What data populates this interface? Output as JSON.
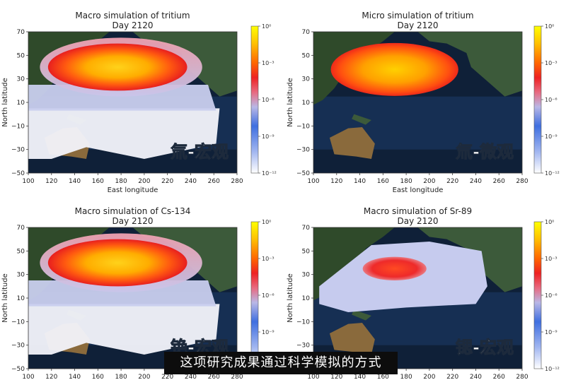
{
  "colorbar_ticks": [
    "10⁰",
    "10⁻³",
    "10⁻⁶",
    "10⁻⁹",
    "10⁻¹²"
  ],
  "colormap": [
    "#ffff00",
    "#ffbf00",
    "#ff6600",
    "#ee2222",
    "#e86a80",
    "#b9b7e6",
    "#3f6fe0",
    "#9fb4f0",
    "#ffffff"
  ],
  "land_color": "#2f4a2a",
  "ocean_color": "#0f2038",
  "chart_data": [
    {
      "type": "heatmap",
      "title": "Macro simulation of tritium",
      "subtitle": "Day 2120",
      "xlabel": "East longitude",
      "ylabel": "North latitude",
      "xticks": [
        "100",
        "120",
        "140",
        "160",
        "180",
        "200",
        "220",
        "240",
        "260",
        "280"
      ],
      "yticks": [
        "70",
        "50",
        "30",
        "10",
        "−10",
        "−30",
        "−50"
      ],
      "xlim": [
        100,
        280
      ],
      "ylim": [
        -50,
        70
      ],
      "colorbar_scale": "log",
      "colorbar_range": [
        1e-12,
        1
      ],
      "overlay_label": "氚-宏观",
      "plume": {
        "core_lon": [
          115,
          235
        ],
        "core_lat": [
          20,
          60
        ],
        "extent_lon": [
          100,
          265
        ],
        "extent_lat": [
          -38,
          65
        ]
      }
    },
    {
      "type": "heatmap",
      "title": "Micro simulation of tritium",
      "subtitle": "Day 2120",
      "xlabel": "East longitude",
      "ylabel": "North latitude",
      "xticks": [
        "100",
        "120",
        "140",
        "160",
        "180",
        "200",
        "220",
        "240",
        "260",
        "280"
      ],
      "yticks": [
        "70",
        "50",
        "30",
        "10",
        "−10",
        "−30",
        "−50"
      ],
      "xlim": [
        100,
        280
      ],
      "ylim": [
        -50,
        70
      ],
      "colorbar_scale": "log",
      "colorbar_range": [
        1e-12,
        1
      ],
      "overlay_label": "氚-微观",
      "plume": {
        "core_lon": [
          115,
          225
        ],
        "core_lat": [
          15,
          60
        ],
        "extent_lon": [
          115,
          230
        ],
        "extent_lat": [
          12,
          62
        ]
      }
    },
    {
      "type": "heatmap",
      "title": "Macro simulation of Cs-134",
      "subtitle": "Day 2120",
      "xlabel": "East longitude",
      "ylabel": "North latitude",
      "xticks": [
        "100",
        "120",
        "140",
        "160",
        "180",
        "200",
        "220",
        "240",
        "260",
        "280"
      ],
      "yticks": [
        "70",
        "50",
        "30",
        "10",
        "−10",
        "−30",
        "−50"
      ],
      "xlim": [
        100,
        280
      ],
      "ylim": [
        -50,
        70
      ],
      "colorbar_scale": "log",
      "colorbar_range": [
        1e-12,
        1
      ],
      "overlay_label": "铯-宏观",
      "plume": {
        "core_lon": [
          115,
          235
        ],
        "core_lat": [
          20,
          60
        ],
        "extent_lon": [
          100,
          265
        ],
        "extent_lat": [
          -38,
          65
        ]
      }
    },
    {
      "type": "heatmap",
      "title": "Macro simulation of Sr-89",
      "subtitle": "Day 2120",
      "xlabel": "East longitude",
      "ylabel": "North latitude",
      "xticks": [
        "100",
        "120",
        "140",
        "160",
        "180",
        "200",
        "220",
        "240",
        "260",
        "280"
      ],
      "yticks": [
        "70",
        "50",
        "30",
        "10",
        "−10",
        "−30",
        "−50"
      ],
      "xlim": [
        100,
        280
      ],
      "ylim": [
        -50,
        70
      ],
      "colorbar_scale": "log",
      "colorbar_range": [
        1e-12,
        1
      ],
      "overlay_label": "锶-宏观",
      "plume": {
        "core_lon": [
          145,
          200
        ],
        "core_lat": [
          25,
          45
        ],
        "extent_lon": [
          100,
          250
        ],
        "extent_lat": [
          -5,
          60
        ]
      }
    }
  ],
  "video_subtitle": "这项研究成果通过科学模拟的方式"
}
